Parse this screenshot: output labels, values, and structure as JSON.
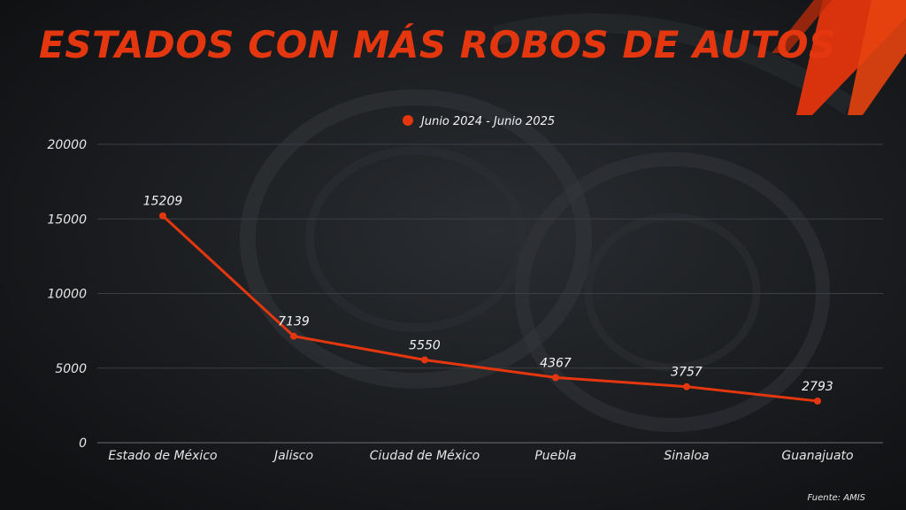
{
  "title": "ESTADOS CON MÁS ROBOS DE AUTOS",
  "source": "Fuente: AMIS",
  "colors": {
    "accent": "#e5370f",
    "background": "#141619",
    "text": "#f2f2f2"
  },
  "chart_data": {
    "type": "line",
    "categories": [
      "Estado de México",
      "Jalisco",
      "Ciudad de México",
      "Puebla",
      "Sinaloa",
      "Guanajuato"
    ],
    "series": [
      {
        "name": "Junio 2024 - Junio 2025",
        "values": [
          15209,
          7139,
          5550,
          4367,
          3757,
          2793
        ]
      }
    ],
    "ylim": [
      0,
      20000
    ],
    "yticks": [
      0,
      5000,
      10000,
      15000,
      20000
    ],
    "grid": true,
    "legend": "top-center",
    "data_labels": true
  }
}
